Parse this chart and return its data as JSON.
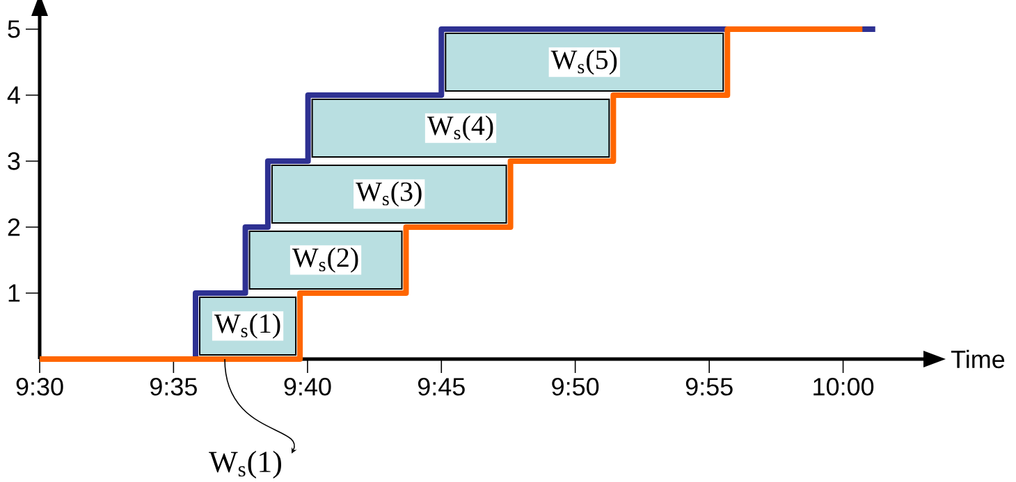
{
  "chart_data": {
    "type": "step",
    "xlabel": "Time",
    "series": [
      {
        "color": "#2e3192",
        "x": [
          9.5,
          9.597,
          9.628,
          9.642,
          9.667,
          9.75,
          10.02
        ],
        "values": [
          0,
          1,
          2,
          3,
          4,
          5,
          5
        ]
      },
      {
        "color": "#ff6600",
        "x": [
          9.5,
          9.662,
          9.728,
          9.793,
          9.857,
          9.928,
          10.012
        ],
        "values": [
          0,
          1,
          2,
          3,
          4,
          5,
          5
        ]
      }
    ],
    "xlim": [
      9.5,
      10.05
    ],
    "ylim": [
      0,
      5.2
    ],
    "xticks": [
      {
        "value": 9.5,
        "label": "9:30"
      },
      {
        "value": 9.5833,
        "label": "9:35"
      },
      {
        "value": 9.6667,
        "label": "9:40"
      },
      {
        "value": 9.75,
        "label": "9:45"
      },
      {
        "value": 9.8333,
        "label": "9:50"
      },
      {
        "value": 9.9167,
        "label": "9:55"
      },
      {
        "value": 10.0,
        "label": "10:00"
      }
    ],
    "yticks": [
      1,
      2,
      3,
      4,
      5
    ],
    "annotations": [
      "W$_{s}$(1)",
      "W$_{s}$(2)",
      "W$_{s}$(3)",
      "W$_{s}$(4)",
      "W$_{s}$(5)",
      "W$_{s}$(1)"
    ]
  }
}
